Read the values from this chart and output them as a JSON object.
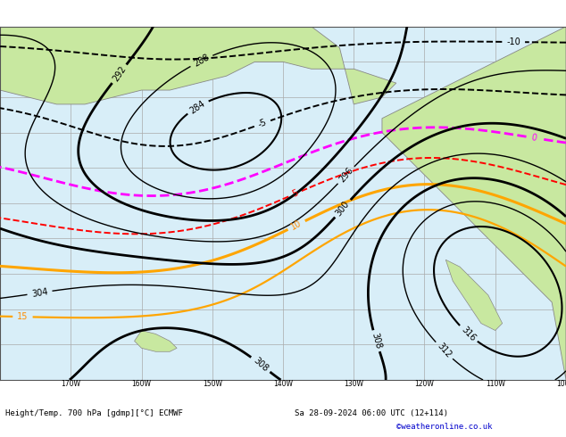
{
  "title_bottom": "Height/Temp. 700 hPa [gdmp][°C] ECMWF",
  "date_str": "Sa 28-09-2024 06:00 UTC (12+114)",
  "watermark": "©weatheronline.co.uk",
  "bg_color_land": "#c8e8a0",
  "bg_color_ocean": "#d8eef8",
  "bg_color_frame": "#ffffff",
  "grid_color": "#aaaaaa",
  "bottom_text_color": "#000000",
  "watermark_color": "#0000cc",
  "figsize": [
    6.34,
    4.9
  ],
  "dpi": 100
}
